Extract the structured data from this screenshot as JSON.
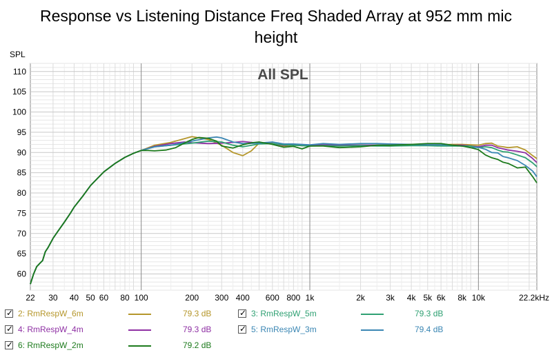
{
  "title_lines": [
    "Response vs Listening Distance Freq Shaded Array at 952 mm mic",
    "height"
  ],
  "chart_data": {
    "type": "line",
    "title": "Response vs Listening Distance Freq Shaded Array at 952 mm mic height",
    "plot_label": "All SPL",
    "ylabel": "SPL",
    "xlabel": "",
    "x_unit": "Hz",
    "x_scale": "log",
    "xlim": [
      22,
      22200
    ],
    "ylim": [
      56,
      112
    ],
    "grid": true,
    "legend_position": "bottom",
    "y_ticks": [
      60,
      65,
      70,
      75,
      80,
      85,
      90,
      95,
      100,
      105,
      110
    ],
    "x_ticks": [
      {
        "value": 22,
        "label": "22"
      },
      {
        "value": 30,
        "label": "30"
      },
      {
        "value": 40,
        "label": "40"
      },
      {
        "value": 50,
        "label": "50"
      },
      {
        "value": 60,
        "label": "60"
      },
      {
        "value": 80,
        "label": "80"
      },
      {
        "value": 100,
        "label": "100"
      },
      {
        "value": 200,
        "label": "200"
      },
      {
        "value": 300,
        "label": "300"
      },
      {
        "value": 400,
        "label": "400"
      },
      {
        "value": 600,
        "label": "600"
      },
      {
        "value": 800,
        "label": "800"
      },
      {
        "value": 1000,
        "label": "1k"
      },
      {
        "value": 2000,
        "label": "2k"
      },
      {
        "value": 3000,
        "label": "3k"
      },
      {
        "value": 4000,
        "label": "4k"
      },
      {
        "value": 5000,
        "label": "5k"
      },
      {
        "value": 6000,
        "label": "6k"
      },
      {
        "value": 8000,
        "label": "8k"
      },
      {
        "value": 10000,
        "label": "10k"
      },
      {
        "value": 22200,
        "label": "22.2kHz"
      }
    ],
    "base_curve": {
      "x": [
        22,
        23,
        24,
        25,
        26,
        27,
        28,
        30,
        32,
        35,
        38,
        40,
        45,
        50,
        55,
        60,
        70,
        80,
        90,
        100
      ],
      "y": [
        57.5,
        60,
        61.8,
        62.6,
        63.3,
        65.5,
        66.5,
        68.8,
        70.5,
        72.8,
        75,
        76.5,
        79.2,
        81.8,
        83.6,
        85.2,
        87.3,
        88.8,
        89.8,
        90.5
      ]
    },
    "series": [
      {
        "name": "2: RmRespW_6m",
        "color": "#b5962a",
        "legend_value": "79.3 dB",
        "x": [
          100,
          120,
          150,
          180,
          200,
          220,
          250,
          300,
          350,
          400,
          450,
          500,
          600,
          700,
          800,
          1000,
          1200,
          1500,
          2000,
          2500,
          3000,
          4000,
          5000,
          6000,
          7000,
          8000,
          9000,
          10000,
          11000,
          12000,
          13000,
          14000,
          15000,
          17000,
          19000,
          21000,
          22200
        ],
        "y": [
          91.3,
          91.8,
          92.5,
          93.4,
          93.9,
          93.6,
          93.2,
          91.8,
          90,
          89.2,
          90.4,
          92.3,
          92.3,
          91.6,
          91.8,
          91.6,
          91.8,
          91.6,
          91.8,
          91.7,
          91.6,
          91.8,
          91.8,
          91.9,
          92,
          92,
          91.9,
          91.8,
          92.2,
          92.3,
          91.6,
          91.4,
          91.2,
          91.4,
          90.6,
          89.2,
          88.5
        ]
      },
      {
        "name": "4: RmRespW_4m",
        "color": "#8e2fa3",
        "legend_value": "79.3 dB",
        "x": [
          100,
          120,
          150,
          180,
          200,
          250,
          300,
          350,
          400,
          500,
          600,
          700,
          800,
          1000,
          1200,
          1500,
          2000,
          2500,
          3000,
          4000,
          5000,
          6000,
          7000,
          8000,
          9000,
          10000,
          11000,
          12000,
          13000,
          14000,
          15000,
          17000,
          19000,
          21000,
          22200
        ],
        "y": [
          91.3,
          91.5,
          92.2,
          92.6,
          92.4,
          92.2,
          92.3,
          92.5,
          92.7,
          92.3,
          92.2,
          91.8,
          91.9,
          91.8,
          91.9,
          91.8,
          91.8,
          91.8,
          91.8,
          91.8,
          91.9,
          91.8,
          91.8,
          91.8,
          91.6,
          91.4,
          91.8,
          91.8,
          91.2,
          90.9,
          90.6,
          90.3,
          89.9,
          88.5,
          87.5
        ]
      },
      {
        "name": "3: RmRespW_5m",
        "color": "#2ea072",
        "legend_value": "79.3 dB",
        "x": [
          100,
          120,
          150,
          200,
          250,
          300,
          350,
          400,
          500,
          600,
          700,
          800,
          1000,
          1200,
          1500,
          2000,
          2500,
          3000,
          4000,
          5000,
          6000,
          7000,
          8000,
          9000,
          10000,
          11000,
          12000,
          13000,
          14000,
          15000,
          17000,
          19000,
          21000,
          22200
        ],
        "y": [
          91.1,
          91.4,
          91.8,
          92.3,
          92.8,
          92.6,
          91.8,
          91.4,
          92.1,
          92.2,
          91.9,
          91.8,
          91.6,
          91.7,
          91.6,
          91.7,
          91.6,
          91.6,
          91.7,
          91.7,
          91.6,
          91.6,
          91.6,
          91.6,
          91.2,
          91.4,
          91.2,
          90.6,
          90.2,
          90.1,
          89.4,
          88.7,
          87.4,
          86.5
        ]
      },
      {
        "name": "5: RmRespW_3m",
        "color": "#3a86b3",
        "legend_value": "79.4 dB",
        "x": [
          100,
          120,
          150,
          200,
          250,
          280,
          300,
          350,
          400,
          500,
          600,
          700,
          800,
          1000,
          1200,
          1500,
          2000,
          2500,
          3000,
          4000,
          5000,
          6000,
          7000,
          8000,
          9000,
          10000,
          11000,
          12000,
          13000,
          14000,
          15000,
          17000,
          19000,
          21000,
          22200
        ],
        "y": [
          91.1,
          91.4,
          91.8,
          92.8,
          93.6,
          93.8,
          93.6,
          92.6,
          92.2,
          92.3,
          92.6,
          92.1,
          92.1,
          91.9,
          92.2,
          92,
          92.2,
          92.2,
          92.1,
          92,
          91.9,
          91.9,
          91.8,
          91.6,
          91.2,
          91.3,
          90.8,
          90,
          89.9,
          89,
          88.7,
          88,
          86.8,
          85.4,
          84
        ]
      },
      {
        "name": "6: RmRespW_2m",
        "color": "#1c7a1c",
        "legend_value": "79.2 dB",
        "x": [
          100,
          110,
          120,
          140,
          160,
          180,
          200,
          220,
          250,
          280,
          300,
          350,
          400,
          450,
          500,
          600,
          700,
          800,
          900,
          1000,
          1200,
          1500,
          2000,
          2500,
          3000,
          4000,
          5000,
          6000,
          7000,
          8000,
          9000,
          10000,
          11000,
          12000,
          13000,
          14000,
          15000,
          17000,
          19000,
          21000,
          22200
        ],
        "y": [
          90.5,
          90.5,
          90.4,
          90.6,
          91.2,
          92.3,
          93.2,
          93.7,
          93.5,
          92.8,
          91.6,
          91.1,
          91.9,
          92.4,
          92.6,
          92,
          91.3,
          91.5,
          90.9,
          91.6,
          91.6,
          91.2,
          91.4,
          91.8,
          91.8,
          92,
          92.2,
          92.2,
          91.8,
          91.6,
          91.2,
          90.7,
          89.4,
          88.7,
          88.3,
          87.6,
          87.3,
          86.2,
          86.4,
          84,
          82.5
        ]
      }
    ]
  },
  "legend": [
    {
      "name": "2: RmRespW_6m",
      "value": "79.3 dB",
      "color": "#b5962a",
      "checked": true
    },
    {
      "name": "3: RmRespW_5m",
      "value": "79.3 dB",
      "color": "#2ea072",
      "checked": true
    },
    {
      "name": "4: RmRespW_4m",
      "value": "79.3 dB",
      "color": "#8e2fa3",
      "checked": true
    },
    {
      "name": "5: RmRespW_3m",
      "value": "79.4 dB",
      "color": "#3a86b3",
      "checked": true
    },
    {
      "name": "6: RmRespW_2m",
      "value": "79.2 dB",
      "color": "#1c7a1c",
      "checked": true
    }
  ]
}
